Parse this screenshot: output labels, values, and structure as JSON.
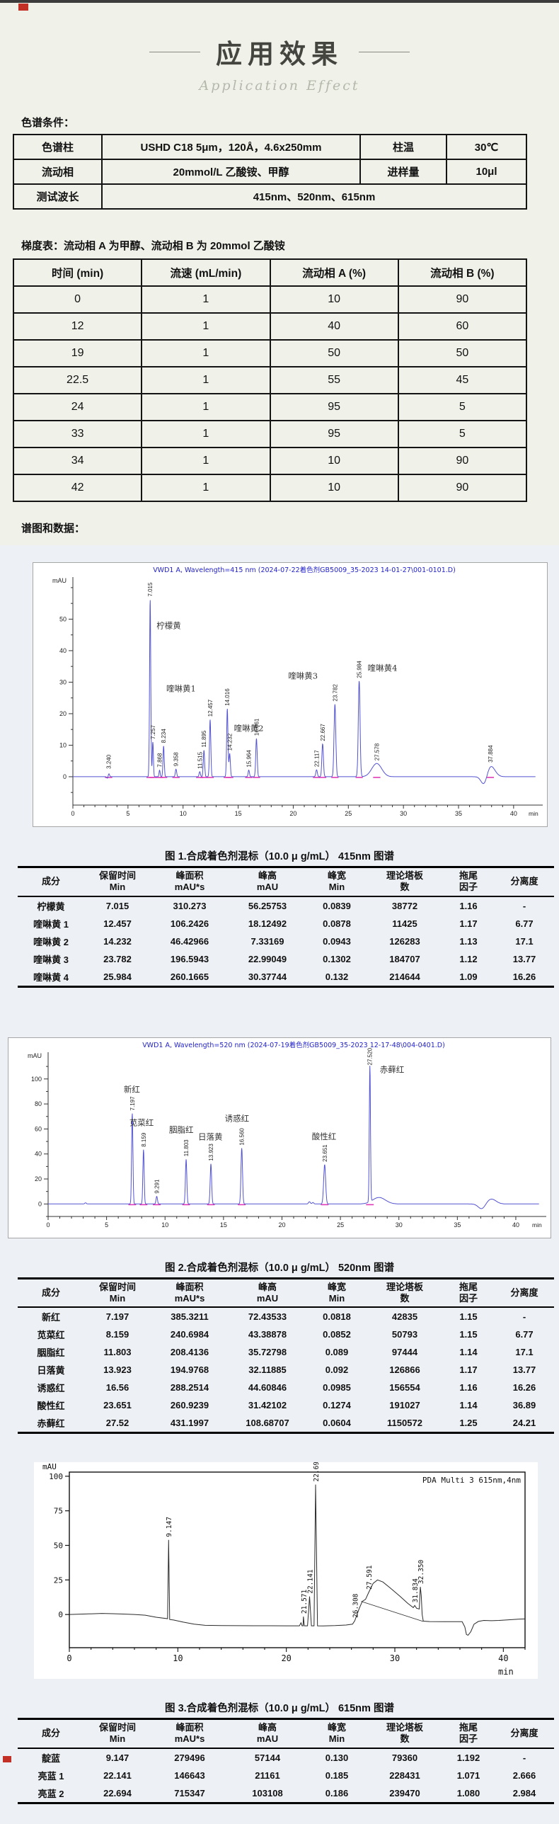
{
  "page": {
    "title": "应用效果",
    "subtitle": "Application Effect"
  },
  "conditions": {
    "label": "色谱条件：",
    "row1": {
      "k1": "色谱柱",
      "v1": "USHD C18 5μm，120Å，4.6x250mm",
      "k2": "柱温",
      "v2": "30℃"
    },
    "row2": {
      "k1": "流动相",
      "v1": "20mmol/L 乙酸铵、甲醇",
      "k2": "进样量",
      "v2": "10μl"
    },
    "row3": {
      "k": "测试波长",
      "v": "415nm、520nm、615nm"
    }
  },
  "gradient": {
    "caption": "梯度表：流动相 A 为甲醇、流动相 B 为 20mmol 乙酸铵",
    "headers": [
      "时间 (min)",
      "流速 (mL/min)",
      "流动相 A (%)",
      "流动相 B (%)"
    ],
    "rows": [
      [
        "0",
        "1",
        "10",
        "90"
      ],
      [
        "12",
        "1",
        "40",
        "60"
      ],
      [
        "19",
        "1",
        "50",
        "50"
      ],
      [
        "22.5",
        "1",
        "55",
        "45"
      ],
      [
        "24",
        "1",
        "95",
        "5"
      ],
      [
        "33",
        "1",
        "95",
        "5"
      ],
      [
        "34",
        "1",
        "10",
        "90"
      ],
      [
        "42",
        "1",
        "10",
        "90"
      ]
    ]
  },
  "spectra_label": "谱图和数据：",
  "peak_table_headers": [
    [
      "成分"
    ],
    [
      "保留时间",
      "Min"
    ],
    [
      "峰面积",
      "mAU*s"
    ],
    [
      "峰高",
      "mAU"
    ],
    [
      "峰宽",
      "Min"
    ],
    [
      "理论塔板",
      "数"
    ],
    [
      "拖尾",
      "因子"
    ],
    [
      "分离度"
    ]
  ],
  "figures": [
    {
      "caption": "图 1.合成着色剂混标（10.0 μ g/mL）  415nm 图谱",
      "table_rows": [
        [
          "柠檬黄",
          "7.015",
          "310.273",
          "56.25753",
          "0.0839",
          "38772",
          "1.16",
          "-"
        ],
        [
          "喹啉黄 1",
          "12.457",
          "106.2426",
          "18.12492",
          "0.0878",
          "11425",
          "1.17",
          "6.77"
        ],
        [
          "喹啉黄 2",
          "14.232",
          "46.42966",
          "7.33169",
          "0.0943",
          "126283",
          "1.13",
          "17.1"
        ],
        [
          "喹啉黄 3",
          "23.782",
          "196.5943",
          "22.99049",
          "0.1302",
          "184707",
          "1.12",
          "13.77"
        ],
        [
          "喹啉黄 4",
          "25.984",
          "260.1665",
          "30.37744",
          "0.132",
          "214644",
          "1.09",
          "16.26"
        ]
      ]
    },
    {
      "caption": "图 2.合成着色剂混标（10.0 μ g/mL）  520nm 图谱",
      "table_rows": [
        [
          "新红",
          "7.197",
          "385.3211",
          "72.43533",
          "0.0818",
          "42835",
          "1.15",
          "-"
        ],
        [
          "苋菜红",
          "8.159",
          "240.6984",
          "43.38878",
          "0.0852",
          "50793",
          "1.15",
          "6.77"
        ],
        [
          "胭脂红",
          "11.803",
          "208.4136",
          "35.72798",
          "0.089",
          "97444",
          "1.14",
          "17.1"
        ],
        [
          "日落黄",
          "13.923",
          "194.9768",
          "32.11885",
          "0.092",
          "126866",
          "1.17",
          "13.77"
        ],
        [
          "诱惑红",
          "16.56",
          "288.2514",
          "44.60846",
          "0.0985",
          "156554",
          "1.16",
          "16.26"
        ],
        [
          "酸性红",
          "23.651",
          "260.9239",
          "31.42102",
          "0.1274",
          "191027",
          "1.14",
          "36.89"
        ],
        [
          "赤藓红",
          "27.52",
          "431.1997",
          "108.68707",
          "0.0604",
          "1150572",
          "1.25",
          "24.21"
        ]
      ]
    },
    {
      "caption": "图 3.合成着色剂混标（10.0 μ g/mL）  615nm 图谱",
      "table_rows": [
        [
          "靛蓝",
          "9.147",
          "279496",
          "57144",
          "0.130",
          "79360",
          "1.192",
          "-"
        ],
        [
          "亮蓝 1",
          "22.141",
          "146643",
          "21161",
          "0.185",
          "228431",
          "1.071",
          "2.666"
        ],
        [
          "亮蓝 2",
          "22.694",
          "715347",
          "103108",
          "0.186",
          "239470",
          "1.080",
          "2.984"
        ]
      ]
    }
  ],
  "chart_data": [
    {
      "type": "line",
      "kind": "vwd",
      "title": "VWD1 A, Wavelength=415 nm (2024-07-22着色剂GB5009_35-2023  14-01-27\\001-0101.D)",
      "title_color": "#2222c8",
      "line_color": "#5353d2",
      "integ_color": "#e03ab8",
      "xlabel": "min",
      "ylabel": "mAU",
      "xlim": [
        0,
        42
      ],
      "ylim": [
        -9,
        62
      ],
      "yticks": [
        0,
        10,
        20,
        30,
        40,
        50
      ],
      "yminor": 5,
      "peaks": [
        {
          "t": 3.18,
          "h": -1.2,
          "s": 0.07
        },
        {
          "t": 3.24,
          "h": 1.6,
          "s": 0.07,
          "rt": "3.240"
        },
        {
          "t": 7.015,
          "h": 56.26,
          "s": 0.055,
          "rt": "7.015",
          "name": "柠檬黄",
          "nd": [
            9,
            41
          ]
        },
        {
          "t": 7.257,
          "h": 11.0,
          "s": 0.05,
          "rt": "7.257"
        },
        {
          "t": 7.868,
          "h": 2.1,
          "s": 0.05,
          "rt": "7.868"
        },
        {
          "t": 8.234,
          "h": 9.8,
          "s": 0.055,
          "rt": "8.234"
        },
        {
          "t": 9.358,
          "h": 2.4,
          "s": 0.06,
          "rt": "9.358"
        },
        {
          "t": 11.515,
          "h": 1.6,
          "s": 0.06,
          "rt": "11.515"
        },
        {
          "t": 11.895,
          "h": 8.4,
          "s": 0.06,
          "rt": "11.895"
        },
        {
          "t": 12.457,
          "h": 18.12,
          "s": 0.06,
          "rt": "12.457",
          "name": "喹啉黄1",
          "nd": [
            -62,
            -40
          ]
        },
        {
          "t": 14.016,
          "h": 21.6,
          "s": 0.06,
          "rt": "14.016"
        },
        {
          "t": 14.232,
          "h": 7.33,
          "s": 0.06,
          "rt": "14.232",
          "name": "喹啉黄2",
          "nd": [
            6,
            -32
          ]
        },
        {
          "t": 15.964,
          "h": 2.1,
          "s": 0.06,
          "rt": "15.964"
        },
        {
          "t": 16.661,
          "h": 12.1,
          "s": 0.065,
          "rt": "16.661"
        },
        {
          "t": 22.117,
          "h": 2.2,
          "s": 0.07,
          "rt": "22.117"
        },
        {
          "t": 22.667,
          "h": 10.4,
          "s": 0.07,
          "rt": "22.667"
        },
        {
          "t": 23.782,
          "h": 22.99,
          "s": 0.08,
          "rt": "23.782",
          "name": "喹啉黄3",
          "nd": [
            -66,
            -36
          ]
        },
        {
          "t": 25.984,
          "h": 30.38,
          "s": 0.08,
          "rt": "25.984",
          "name": "喹啉黄4",
          "nd": [
            12,
            -14
          ]
        },
        {
          "t": 27.578,
          "h": 4.2,
          "s": 0.45,
          "rt": "27.578"
        },
        {
          "t": 37.35,
          "h": -3.4,
          "s": 0.28
        },
        {
          "t": 37.884,
          "h": 3.6,
          "s": 0.4,
          "rt": "37.884"
        }
      ]
    },
    {
      "type": "line",
      "kind": "vwd",
      "title": "VWD1 A, Wavelength=520 nm (2024-07-19着色剂GB5009_35-2023  12-17-48\\004-0401.D)",
      "title_color": "#2222c8",
      "line_color": "#5353d2",
      "integ_color": "#e03ab8",
      "xlabel": "min",
      "ylabel": "mAU",
      "xlim": [
        0,
        42
      ],
      "ylim": [
        -10,
        118
      ],
      "yticks": [
        0,
        20,
        40,
        60,
        80,
        100
      ],
      "yminor": 10,
      "peaks": [
        {
          "t": 3.2,
          "h": 0.9,
          "s": 0.07
        },
        {
          "t": 7.197,
          "h": 72.44,
          "s": 0.055,
          "rt": "7.197",
          "name": "新红",
          "nd": [
            -12,
            -30
          ]
        },
        {
          "t": 8.159,
          "h": 43.39,
          "s": 0.055,
          "rt": "8.159",
          "name": "苋菜红",
          "nd": [
            -20,
            -34
          ]
        },
        {
          "t": 9.291,
          "h": 6.1,
          "s": 0.06,
          "rt": "9.291"
        },
        {
          "t": 11.803,
          "h": 35.73,
          "s": 0.06,
          "rt": "11.803",
          "name": "胭脂红",
          "nd": [
            -24,
            -38
          ]
        },
        {
          "t": 13.923,
          "h": 32.12,
          "s": 0.062,
          "rt": "13.923",
          "name": "日落黄",
          "nd": [
            -18,
            -34
          ]
        },
        {
          "t": 16.56,
          "h": 44.61,
          "s": 0.066,
          "rt": "16.560",
          "name": "诱惑红",
          "nd": [
            -24,
            -38
          ]
        },
        {
          "t": 22.35,
          "h": 1.8,
          "s": 0.08
        },
        {
          "t": 22.65,
          "h": 1.2,
          "s": 0.07
        },
        {
          "t": 23.651,
          "h": 31.42,
          "s": 0.085,
          "rt": "23.651",
          "name": "酸性红",
          "nd": [
            -18,
            -36
          ]
        },
        {
          "t": 27.52,
          "h": 108.69,
          "s": 0.05,
          "rt": "27.520",
          "name": "赤藓红",
          "nd": [
            14,
            6
          ]
        },
        {
          "t": 28.3,
          "h": 5.2,
          "s": 0.55
        },
        {
          "t": 37.1,
          "h": -4.2,
          "s": 0.3
        },
        {
          "t": 37.9,
          "h": 4.0,
          "s": 0.4
        }
      ]
    },
    {
      "type": "line",
      "kind": "pda",
      "annotation": "PDA Multi 3 615nm,4nm",
      "line_color": "#2b2b2b",
      "xlabel": "min",
      "ylabel": "mAU",
      "xlim": [
        0,
        42
      ],
      "ylim": [
        -24,
        103
      ],
      "yticks": [
        0,
        25,
        50,
        75,
        100
      ],
      "xticks": [
        0,
        10,
        20,
        30,
        40
      ],
      "xminor": 2,
      "trace": [
        [
          0,
          0
        ],
        [
          1.5,
          0.4
        ],
        [
          3,
          0.8
        ],
        [
          4,
          0.6
        ],
        [
          5,
          0.3
        ],
        [
          6,
          0
        ],
        [
          7,
          -0.5
        ],
        [
          8,
          -2
        ],
        [
          9.05,
          -3
        ],
        [
          9.147,
          54
        ],
        [
          9.25,
          -3.6
        ],
        [
          9.6,
          -4
        ],
        [
          10.5,
          -5.5
        ],
        [
          11.5,
          -7
        ],
        [
          12.5,
          -7.8
        ],
        [
          14,
          -8
        ],
        [
          17,
          -8.1
        ],
        [
          20,
          -8.2
        ],
        [
          21.2,
          -8.2
        ],
        [
          21.35,
          -6
        ],
        [
          21.45,
          -8.2
        ],
        [
          21.54,
          -8.2
        ],
        [
          21.571,
          -1.5
        ],
        [
          21.66,
          -8.2
        ],
        [
          21.95,
          -8.2
        ],
        [
          22.141,
          13
        ],
        [
          22.31,
          -8.2
        ],
        [
          22.55,
          -8.2
        ],
        [
          22.694,
          94
        ],
        [
          22.87,
          -8.2
        ],
        [
          23.4,
          -8.3
        ],
        [
          24.5,
          -8
        ],
        [
          25.5,
          -7.6
        ],
        [
          26.1,
          -7
        ],
        [
          26.308,
          -4.5
        ],
        [
          26.7,
          4
        ],
        [
          27.0,
          9.5
        ],
        [
          27.3,
          11
        ],
        [
          27.591,
          16
        ],
        [
          28.0,
          22.5
        ],
        [
          28.4,
          25
        ],
        [
          28.9,
          23.5
        ],
        [
          29.6,
          19
        ],
        [
          30.5,
          13
        ],
        [
          31.2,
          8
        ],
        [
          31.7,
          5
        ],
        [
          31.834,
          6.5
        ],
        [
          32.0,
          4.5
        ],
        [
          32.25,
          4
        ],
        [
          32.35,
          20
        ],
        [
          32.43,
          14
        ],
        [
          32.52,
          0
        ],
        [
          32.62,
          -4.8
        ],
        [
          33.2,
          -5.1
        ],
        [
          34.5,
          -5.2
        ],
        [
          36.2,
          -5.2
        ],
        [
          36.45,
          -9
        ],
        [
          36.6,
          -14.5
        ],
        [
          36.75,
          -15
        ],
        [
          37.0,
          -12.5
        ],
        [
          37.3,
          -7
        ],
        [
          37.7,
          -5
        ],
        [
          38.2,
          -4.3
        ],
        [
          38.9,
          -4.5
        ],
        [
          39.6,
          -4.3
        ],
        [
          40.5,
          -3.8
        ],
        [
          41.5,
          -3.3
        ],
        [
          42,
          -3.2
        ]
      ],
      "extra_lines": [
        [
          26.9,
          9.5,
          32.6,
          -5
        ]
      ],
      "peak_labels": [
        {
          "t": 9.147,
          "v": 54,
          "text": "9.147"
        },
        {
          "t": 21.571,
          "v": -1.5,
          "text": "21.571"
        },
        {
          "t": 22.141,
          "v": 13,
          "text": "22.141"
        },
        {
          "t": 22.694,
          "v": 94,
          "text": "22.694"
        },
        {
          "t": 26.308,
          "v": -4.5,
          "text": "26.308"
        },
        {
          "t": 27.591,
          "v": 16,
          "text": "27.591"
        },
        {
          "t": 31.834,
          "v": 6.5,
          "text": "31.834"
        },
        {
          "t": 32.35,
          "v": 20,
          "text": "32.350"
        }
      ]
    }
  ]
}
